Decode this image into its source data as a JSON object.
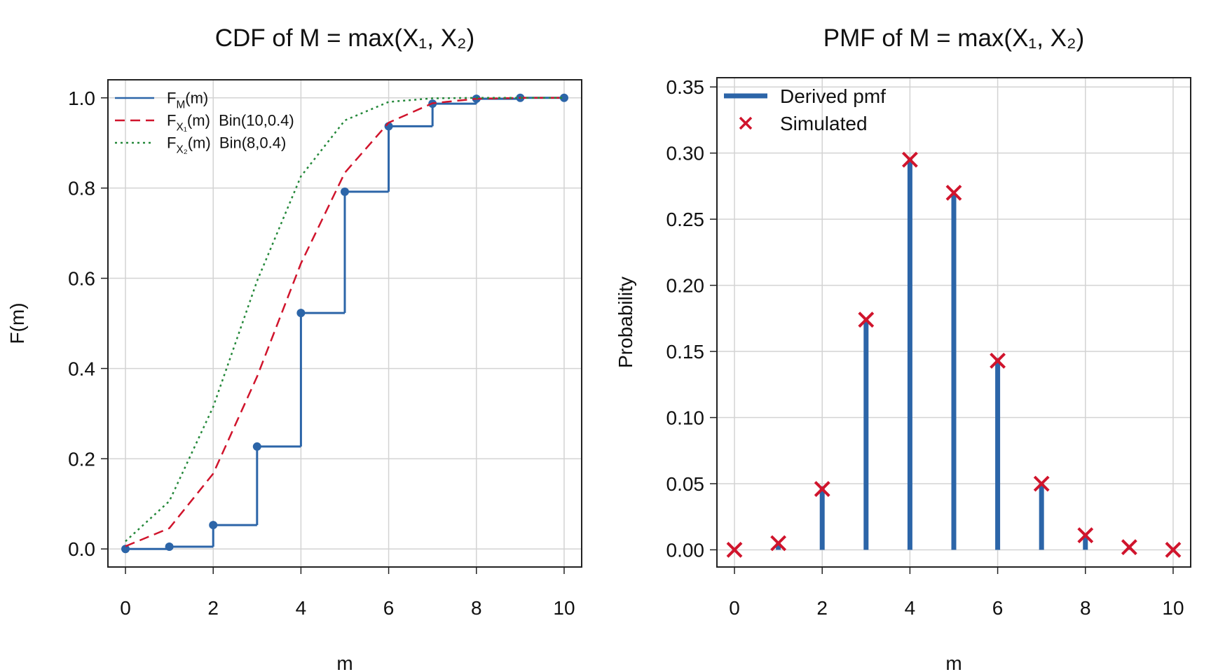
{
  "chart_data": [
    {
      "type": "line",
      "title": "CDF of M = max(X₁, X₂)",
      "x_label": "m",
      "y_label": "F(m)",
      "x": [
        0,
        1,
        2,
        3,
        4,
        5,
        6,
        7,
        8,
        9,
        10
      ],
      "xlim": [
        -0.4,
        10.4
      ],
      "ylim": [
        -0.04,
        1.04
      ],
      "xticks": [
        0,
        2,
        4,
        6,
        8,
        10
      ],
      "yticks": [
        {
          "value": 0,
          "label": "0.0"
        },
        0.2,
        0.4,
        0.6,
        0.8,
        {
          "value": 1,
          "label": "1.0"
        }
      ],
      "grid": true,
      "legend": "top-left",
      "series": [
        {
          "name": [
            {
              "text": "F"
            },
            {
              "text": "M",
              "sub": true
            },
            {
              "text": "(m)"
            }
          ],
          "color": "#2c65a8",
          "style": "step",
          "values": [
            0,
            0.005,
            0.053,
            0.227,
            0.523,
            0.792,
            0.937,
            0.987,
            0.998,
            1,
            1
          ]
        },
        {
          "name": [
            {
              "text": "F"
            },
            {
              "text": "X₁",
              "sub": true
            },
            {
              "text": "(m)  Bin(10,0.4)"
            }
          ],
          "color": "#d0142c",
          "style": "dashed",
          "values": [
            0.006,
            0.046,
            0.167,
            0.382,
            0.633,
            0.834,
            0.945,
            0.988,
            0.998,
            1,
            1
          ]
        },
        {
          "name": [
            {
              "text": "F"
            },
            {
              "text": "X₂",
              "sub": true
            },
            {
              "text": "(m)  Bin(8,0.4)"
            }
          ],
          "color": "#24883a",
          "style": "dotted",
          "values": [
            0.017,
            0.106,
            0.315,
            0.594,
            0.826,
            0.95,
            0.991,
            0.999,
            1,
            1,
            1
          ]
        }
      ]
    },
    {
      "type": "stem",
      "title": "PMF of M = max(X₁, X₂)",
      "x_label": "m",
      "y_label": "Probability",
      "x": [
        0,
        1,
        2,
        3,
        4,
        5,
        6,
        7,
        8,
        9,
        10
      ],
      "xlim": [
        -0.4,
        10.4
      ],
      "ylim": [
        -0.013,
        0.357
      ],
      "xticks": [
        0,
        2,
        4,
        6,
        8,
        10
      ],
      "yticks": [
        {
          "value": 0,
          "label": "0.00"
        },
        0.05,
        {
          "value": 0.1,
          "label": "0.10"
        },
        0.15,
        {
          "value": 0.2,
          "label": "0.20"
        },
        0.25,
        {
          "value": 0.3,
          "label": "0.30"
        },
        0.35
      ],
      "grid": true,
      "legend": "top-left",
      "series": [
        {
          "name": [
            {
              "text": "Derived pmf"
            }
          ],
          "color": "#2c65a8",
          "style": "stem",
          "values": [
            0,
            0.005,
            0.048,
            0.174,
            0.296,
            0.269,
            0.145,
            0.05,
            0.011,
            0.002,
            0
          ]
        },
        {
          "name": [
            {
              "text": "Simulated"
            }
          ],
          "color": "#d0142c",
          "style": "cross",
          "values": [
            0,
            0.005,
            0.046,
            0.174,
            0.295,
            0.27,
            0.143,
            0.05,
            0.011,
            0.002,
            0
          ]
        }
      ]
    }
  ]
}
